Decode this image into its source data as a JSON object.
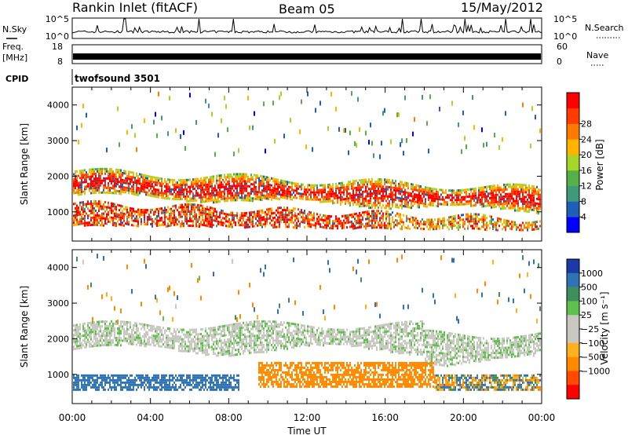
{
  "header": {
    "station": "Rankin Inlet (fitACF)",
    "beam": "Beam 05",
    "date": "15/May/2012"
  },
  "top_panels": {
    "nsky_label": "N.Sky",
    "nsearch_label": "N.Search",
    "nsky_ticks": [
      "10^5",
      "10^0"
    ],
    "nsearch_ticks": [
      "10^5",
      "10^0"
    ],
    "freq_label_line1": "Freq.",
    "freq_label_line2": "[MHz]",
    "freq_ticks": [
      "18",
      "8"
    ],
    "nave_label": "Nave",
    "nave_ticks": [
      "60",
      "0"
    ],
    "cpid_label": "CPID",
    "cpid_value": "twofsound 3501"
  },
  "colors": {
    "power_scale": [
      "#0000ff",
      "#1f5fb8",
      "#3e9a7a",
      "#56b04a",
      "#a6d62a",
      "#ffb400",
      "#ff7a00",
      "#ff3c00",
      "#ff0000"
    ],
    "velocity_scale": [
      "#1c3aa6",
      "#2f73b2",
      "#3e8e5e",
      "#5ec24a",
      "#c8c8c0",
      "#c8c8c0",
      "#ffb020",
      "#ff8a00",
      "#ff4a00",
      "#ff0000"
    ]
  },
  "chart_data": [
    {
      "type": "heatmap",
      "name": "power",
      "title": "",
      "xlabel": "",
      "ylabel": "Slant Range [km]",
      "xlim": [
        "00:00",
        "00:00"
      ],
      "ylim": [
        180,
        4500
      ],
      "x_ticks": [
        "00:00",
        "04:00",
        "08:00",
        "12:00",
        "16:00",
        "20:00",
        "00:00"
      ],
      "y_ticks": [
        1000,
        2000,
        3000,
        4000
      ],
      "colorbar_label": "Power [dB]",
      "colorbar_ticks": [
        "4",
        "8",
        "12",
        "16",
        "20",
        "24",
        "28"
      ],
      "bands": [
        {
          "desc": "upper layer",
          "hours": [
            0,
            24
          ],
          "range_start": [
            2150,
            1500
          ],
          "range_end": [
            1650,
            1050
          ],
          "level": "green-orange"
        },
        {
          "desc": "lower layer",
          "hours": [
            0,
            24
          ],
          "range_start": [
            800,
            1100
          ],
          "range_end": [
            650,
            650
          ],
          "level": "orange-red"
        }
      ]
    },
    {
      "type": "heatmap",
      "name": "velocity",
      "title": "",
      "xlabel": "Time UT",
      "ylabel": "Slant Range [km]",
      "xlim": [
        "00:00",
        "00:00"
      ],
      "ylim": [
        180,
        4500
      ],
      "x_ticks": [
        "00:00",
        "04:00",
        "08:00",
        "12:00",
        "16:00",
        "20:00",
        "00:00"
      ],
      "y_ticks": [
        1000,
        2000,
        3000,
        4000
      ],
      "colorbar_label": "Velocity [m s⁻¹]",
      "colorbar_ticks": [
        "1000",
        "500",
        "100",
        "25",
        "−25",
        "−100",
        "−500",
        "−1000"
      ],
      "regions": [
        {
          "desc": "ground scatter band",
          "hours": [
            0,
            24
          ],
          "range": [
            1700,
            2400
          ],
          "velocity": 0
        },
        {
          "desc": "positive flow",
          "hours": [
            0,
            8.5
          ],
          "range": [
            600,
            1000
          ],
          "velocity": 300
        },
        {
          "desc": "negative flow",
          "hours": [
            9.5,
            18.5
          ],
          "range": [
            650,
            1350
          ],
          "velocity": -300
        },
        {
          "desc": "mixed flow",
          "hours": [
            18.5,
            24
          ],
          "range": [
            550,
            1000
          ],
          "velocity": 100
        }
      ]
    }
  ]
}
